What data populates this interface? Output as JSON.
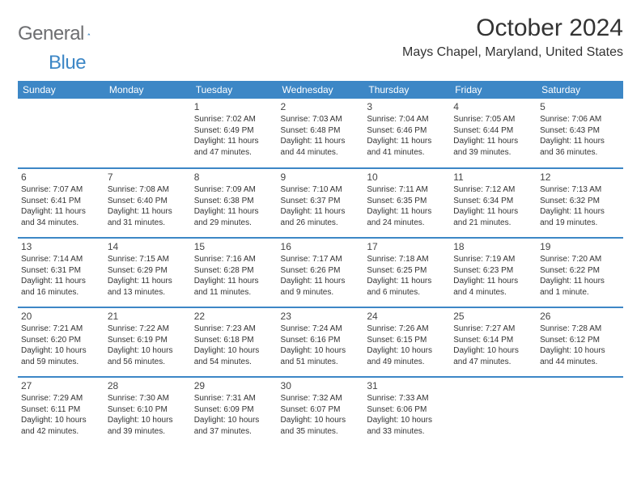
{
  "brand": {
    "part1": "General",
    "part2": "Blue"
  },
  "title": "October 2024",
  "location": "Mays Chapel, Maryland, United States",
  "colors": {
    "header_bg": "#3d87c6",
    "header_text": "#ffffff",
    "rule": "#3d87c6",
    "body_text": "#333333",
    "logo_gray": "#6d6e71",
    "logo_blue": "#3d87c6",
    "background": "#ffffff"
  },
  "day_headers": [
    "Sunday",
    "Monday",
    "Tuesday",
    "Wednesday",
    "Thursday",
    "Friday",
    "Saturday"
  ],
  "weeks": [
    [
      null,
      null,
      {
        "n": "1",
        "sr": "7:02 AM",
        "ss": "6:49 PM",
        "dl": "11 hours and 47 minutes."
      },
      {
        "n": "2",
        "sr": "7:03 AM",
        "ss": "6:48 PM",
        "dl": "11 hours and 44 minutes."
      },
      {
        "n": "3",
        "sr": "7:04 AM",
        "ss": "6:46 PM",
        "dl": "11 hours and 41 minutes."
      },
      {
        "n": "4",
        "sr": "7:05 AM",
        "ss": "6:44 PM",
        "dl": "11 hours and 39 minutes."
      },
      {
        "n": "5",
        "sr": "7:06 AM",
        "ss": "6:43 PM",
        "dl": "11 hours and 36 minutes."
      }
    ],
    [
      {
        "n": "6",
        "sr": "7:07 AM",
        "ss": "6:41 PM",
        "dl": "11 hours and 34 minutes."
      },
      {
        "n": "7",
        "sr": "7:08 AM",
        "ss": "6:40 PM",
        "dl": "11 hours and 31 minutes."
      },
      {
        "n": "8",
        "sr": "7:09 AM",
        "ss": "6:38 PM",
        "dl": "11 hours and 29 minutes."
      },
      {
        "n": "9",
        "sr": "7:10 AM",
        "ss": "6:37 PM",
        "dl": "11 hours and 26 minutes."
      },
      {
        "n": "10",
        "sr": "7:11 AM",
        "ss": "6:35 PM",
        "dl": "11 hours and 24 minutes."
      },
      {
        "n": "11",
        "sr": "7:12 AM",
        "ss": "6:34 PM",
        "dl": "11 hours and 21 minutes."
      },
      {
        "n": "12",
        "sr": "7:13 AM",
        "ss": "6:32 PM",
        "dl": "11 hours and 19 minutes."
      }
    ],
    [
      {
        "n": "13",
        "sr": "7:14 AM",
        "ss": "6:31 PM",
        "dl": "11 hours and 16 minutes."
      },
      {
        "n": "14",
        "sr": "7:15 AM",
        "ss": "6:29 PM",
        "dl": "11 hours and 13 minutes."
      },
      {
        "n": "15",
        "sr": "7:16 AM",
        "ss": "6:28 PM",
        "dl": "11 hours and 11 minutes."
      },
      {
        "n": "16",
        "sr": "7:17 AM",
        "ss": "6:26 PM",
        "dl": "11 hours and 9 minutes."
      },
      {
        "n": "17",
        "sr": "7:18 AM",
        "ss": "6:25 PM",
        "dl": "11 hours and 6 minutes."
      },
      {
        "n": "18",
        "sr": "7:19 AM",
        "ss": "6:23 PM",
        "dl": "11 hours and 4 minutes."
      },
      {
        "n": "19",
        "sr": "7:20 AM",
        "ss": "6:22 PM",
        "dl": "11 hours and 1 minute."
      }
    ],
    [
      {
        "n": "20",
        "sr": "7:21 AM",
        "ss": "6:20 PM",
        "dl": "10 hours and 59 minutes."
      },
      {
        "n": "21",
        "sr": "7:22 AM",
        "ss": "6:19 PM",
        "dl": "10 hours and 56 minutes."
      },
      {
        "n": "22",
        "sr": "7:23 AM",
        "ss": "6:18 PM",
        "dl": "10 hours and 54 minutes."
      },
      {
        "n": "23",
        "sr": "7:24 AM",
        "ss": "6:16 PM",
        "dl": "10 hours and 51 minutes."
      },
      {
        "n": "24",
        "sr": "7:26 AM",
        "ss": "6:15 PM",
        "dl": "10 hours and 49 minutes."
      },
      {
        "n": "25",
        "sr": "7:27 AM",
        "ss": "6:14 PM",
        "dl": "10 hours and 47 minutes."
      },
      {
        "n": "26",
        "sr": "7:28 AM",
        "ss": "6:12 PM",
        "dl": "10 hours and 44 minutes."
      }
    ],
    [
      {
        "n": "27",
        "sr": "7:29 AM",
        "ss": "6:11 PM",
        "dl": "10 hours and 42 minutes."
      },
      {
        "n": "28",
        "sr": "7:30 AM",
        "ss": "6:10 PM",
        "dl": "10 hours and 39 minutes."
      },
      {
        "n": "29",
        "sr": "7:31 AM",
        "ss": "6:09 PM",
        "dl": "10 hours and 37 minutes."
      },
      {
        "n": "30",
        "sr": "7:32 AM",
        "ss": "6:07 PM",
        "dl": "10 hours and 35 minutes."
      },
      {
        "n": "31",
        "sr": "7:33 AM",
        "ss": "6:06 PM",
        "dl": "10 hours and 33 minutes."
      },
      null,
      null
    ]
  ],
  "labels": {
    "sunrise": "Sunrise: ",
    "sunset": "Sunset: ",
    "daylight": "Daylight: "
  }
}
